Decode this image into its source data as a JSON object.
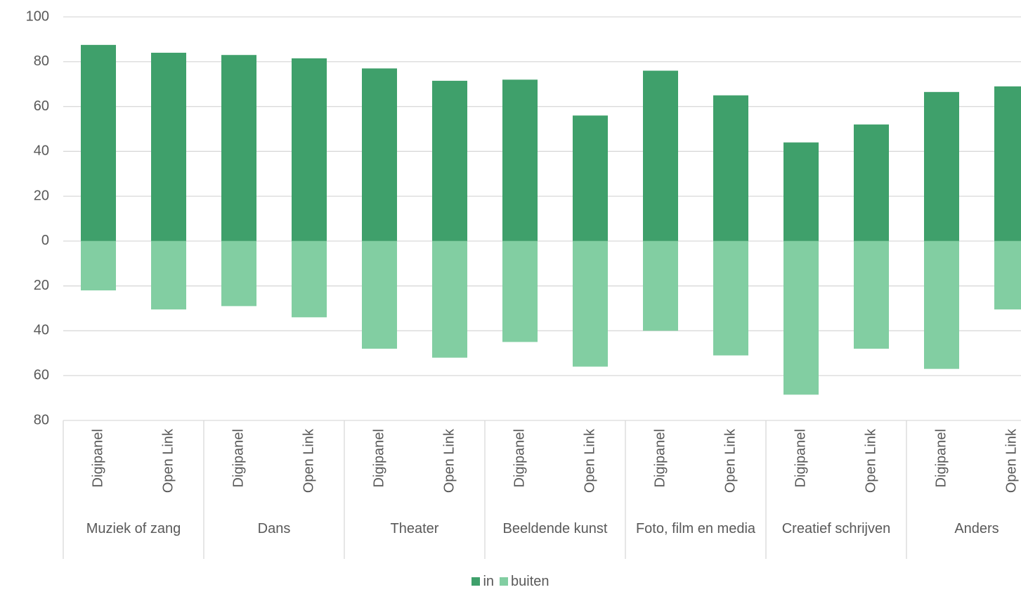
{
  "chart_data": {
    "type": "bar",
    "groups": [
      "Muziek of zang",
      "Dans",
      "Theater",
      "Beeldende kunst",
      "Foto, film en media",
      "Creatief schrijven",
      "Anders"
    ],
    "categories": [
      "Digipanel",
      "Open Link",
      "Digipanel",
      "Open Link",
      "Digipanel",
      "Open Link",
      "Digipanel",
      "Open Link",
      "Digipanel",
      "Open Link",
      "Digipanel",
      "Open Link",
      "Digipanel",
      "Open Link"
    ],
    "series": [
      {
        "name": "in",
        "color": "#3fa06b",
        "values": [
          87.5,
          84,
          83,
          81.5,
          77,
          71.5,
          72,
          56,
          76,
          65,
          44,
          52,
          66.5,
          69
        ]
      },
      {
        "name": "buiten",
        "color": "#82cea2",
        "values": [
          -22,
          -30.5,
          -29,
          -34,
          -48,
          -52,
          -45,
          -56,
          -40,
          -51,
          -68.5,
          -48,
          -57,
          -30.5
        ]
      }
    ],
    "ylim": [
      -80,
      100
    ],
    "yticks": [
      {
        "value": -80,
        "label": "80"
      },
      {
        "value": -60,
        "label": "60"
      },
      {
        "value": -40,
        "label": "40"
      },
      {
        "value": -20,
        "label": "20"
      },
      0,
      20,
      40,
      60,
      80,
      100
    ],
    "grid": true,
    "legend": "bottom"
  }
}
